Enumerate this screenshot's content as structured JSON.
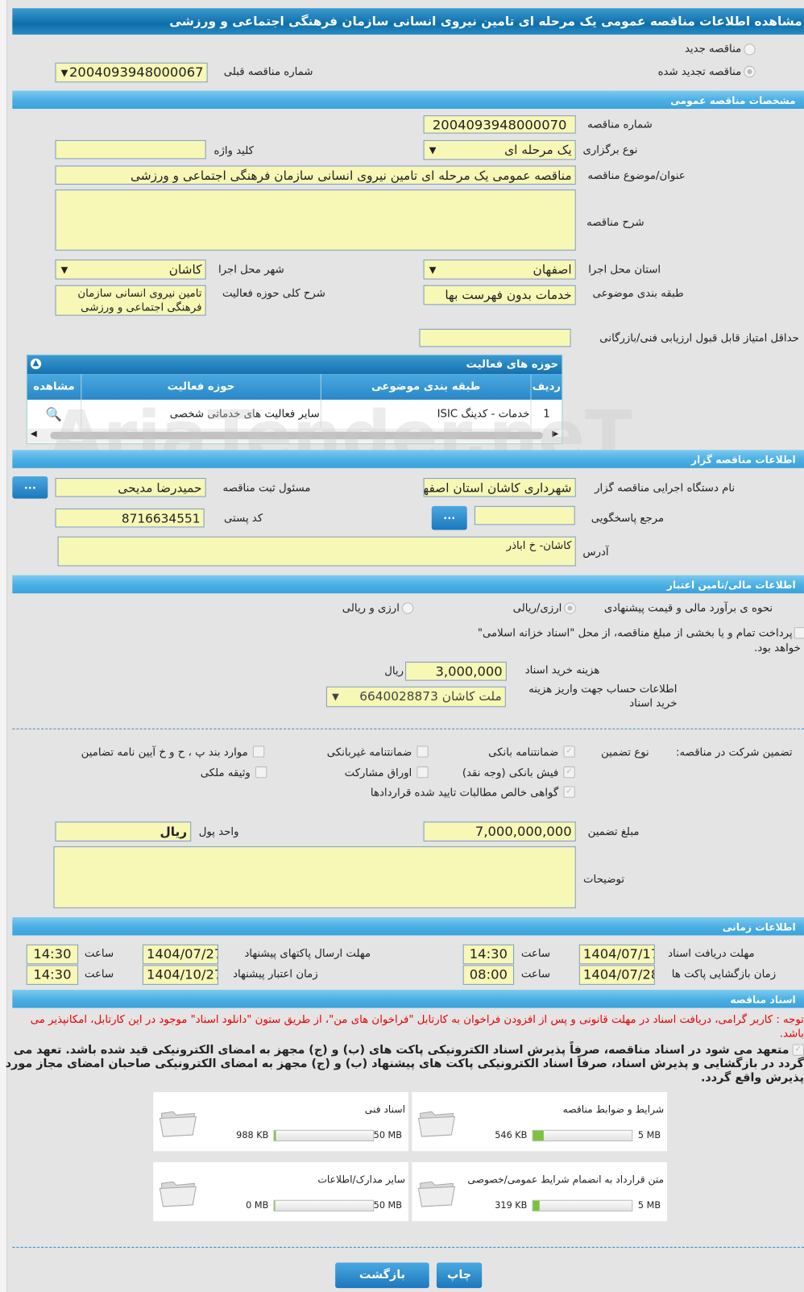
{
  "title": "مشاهده اطلاعات مناقصه عمومی یک مرحله ای تامین نیروی انسانی سازمان فرهنگی اجتماعی و ورزشی",
  "tender_type": {
    "new_label": "مناقصه جدید",
    "renewed_label": "مناقصه تجدید شده",
    "selected": "renewed",
    "prev_number_label": "شماره مناقصه قبلی",
    "prev_number": "2004093948000067"
  },
  "general": {
    "section": "مشخصات مناقصه عمومی",
    "number_label": "شماره مناقصه",
    "number": "2004093948000070",
    "holding_type_label": "نوع برگزاری",
    "holding_type": "یک مرحله ای",
    "keyword_label": "کلید واژه",
    "keyword": "",
    "subject_label": "عنوان/موضوع مناقصه",
    "subject": "مناقصه عمومی یک مرحله ای تامین نیروی انسانی سازمان فرهنگی اجتماعی و ورزشی",
    "description_label": "شرح مناقصه",
    "description": "",
    "province_label": "استان محل اجرا",
    "province": "اصفهان",
    "city_label": "شهر محل اجرا",
    "city": "کاشان",
    "category_label": "طبقه بندی موضوعی",
    "category": "خدمات بدون فهرست بها",
    "activity_desc_label": "شرح کلی حوزه فعالیت",
    "activity_desc": "تامین نیروی انسانی سازمان فرهنگی اجتماعی و ورزشی",
    "min_score_label": "حداقل امتیاز قابل قبول ارزیابی فنی/بازرگانی",
    "min_score": ""
  },
  "activities": {
    "title": "حوزه های فعالیت",
    "columns": [
      "ردیف",
      "طبقه بندی موضوعی",
      "حوزه فعالیت",
      "مشاهده"
    ],
    "rows": [
      {
        "row": "1",
        "category": "خدمات - کدینگ ISIC",
        "field": "سایر فعالیت های خدماتی شخصی"
      }
    ]
  },
  "watermark": "AriaTender.neT",
  "organizer": {
    "section": "اطلاعات مناقصه گزار",
    "org_label": "نام دستگاه اجرایی مناقصه گزار",
    "org": "شهرداری کاشان استان اصفهان",
    "officer_label": "مسئول ثبت مناقصه",
    "officer": "حمیدرضا مدیحی",
    "ref_label": "مرجع پاسخگویی",
    "ref": "",
    "postal_label": "کد پستی",
    "postal": "8716634551",
    "address_label": "آدرس",
    "address": "کاشان- خ اباذر",
    "more_button": "..."
  },
  "financial": {
    "section": "اطلاعات مالی/تامین اعتبار",
    "estimate_label": "نحوه ی برآورد مالی و قیمت پیشنهادی",
    "opt1": "ارزی/ریالی",
    "opt2": "ارزی و ریالی",
    "treasury_text": "پرداخت تمام و یا بخشی از مبلغ مناقصه، از محل \"اسناد خزانه اسلامی\"",
    "treasury_text2": "خواهد بود.",
    "doc_fee_label": "هزینه خرید اسناد",
    "doc_fee": "3,000,000",
    "doc_fee_unit": "ریال",
    "account_label": "اطلاعات حساب جهت واریز هزینه خرید اسناد",
    "account": "ملت کاشان 6640028873"
  },
  "guarantee": {
    "label": "تضمین شرکت در مناقصه:",
    "type_label": "نوع تضمین",
    "options": [
      {
        "label": "ضمانتنامه بانکی",
        "checked": true
      },
      {
        "label": "ضمانتنامه غیربانکی",
        "checked": false
      },
      {
        "label": "موارد بند پ ، ح و خ آیین نامه تضامین",
        "checked": false
      },
      {
        "label": "فیش بانکی (وجه نقد)",
        "checked": true
      },
      {
        "label": "اوراق مشارکت",
        "checked": false
      },
      {
        "label": "وثیقه ملکی",
        "checked": false
      },
      {
        "label": "گواهی خالص مطالبات تایید شده قراردادها",
        "checked": true
      }
    ],
    "amount_label": "مبلغ تضمین",
    "amount": "7,000,000,000",
    "currency_label": "واحد پول",
    "currency": "ریال",
    "notes_label": "توضیحات",
    "notes": ""
  },
  "timing": {
    "section": "اطلاعات زمانی",
    "time_label": "ساعت",
    "doc_deadline_label": "مهلت دریافت اسناد",
    "doc_deadline_date": "1404/07/17",
    "doc_deadline_time": "14:30",
    "submit_label": "مهلت ارسال پاکتهای پیشنهاد",
    "submit_date": "1404/07/27",
    "submit_time": "14:30",
    "opening_label": "زمان بازگشایی پاکت ها",
    "opening_date": "1404/07/28",
    "opening_time": "08:00",
    "validity_label": "زمان اعتبار پیشنهاد",
    "validity_date": "1404/10/27",
    "validity_time": "14:30"
  },
  "documents": {
    "section": "اسناد مناقصه",
    "notice": "توجه : کاربر گرامی، دریافت اسناد در مهلت قانونی و پس از افزودن فراخوان به کارتابل \"فراخوان های من\"، از طریق ستون \"دانلود اسناد\" موجود در این کارتابل، امکانپذیر می باشد.",
    "commitment": "متعهد می شود در اسناد مناقصه، صرفاً پذیرش اسناد الکترونیکی پاکت های (ب) و (ج) مجهز به امضای الکترونیکی قید شده باشد. تعهد می گردد در بازگشایی و پذیرش اسناد، صرفاً اسناد الکترونیکی پاکت های پیشنهاد (ب) و (ج) مجهز به امضای الکترونیکی صاحبان امضای مجاز مورد پذیرش واقع گردد.",
    "files": [
      {
        "name": "شرایط و ضوابط مناقصه",
        "size": "546 KB",
        "max": "5 MB",
        "fill": 0.11
      },
      {
        "name": "اسناد فنی",
        "size": "988 KB",
        "max": "50 MB",
        "fill": 0.02
      },
      {
        "name": "متن قرارداد به انضمام شرایط عمومی/خصوصی",
        "size": "319 KB",
        "max": "5 MB",
        "fill": 0.07
      },
      {
        "name": "سایر مدارک/اطلاعات",
        "size": "0 MB",
        "max": "50 MB",
        "fill": 0
      }
    ]
  },
  "buttons": {
    "back": "بازگشت",
    "print": "چاپ"
  }
}
